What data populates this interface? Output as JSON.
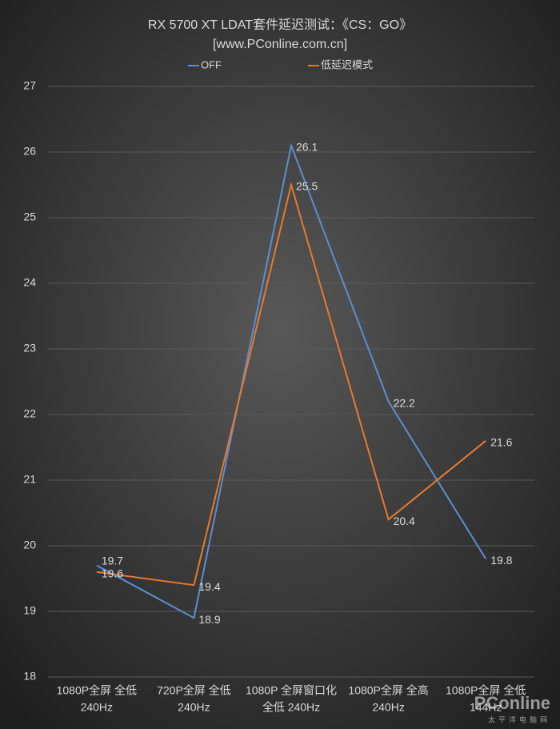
{
  "chart_data": {
    "type": "line",
    "title": "RX 5700 XT LDAT套件延迟测试：《CS：GO》",
    "subtitle": "[www.PConline.com.cn]",
    "categories": [
      [
        "1080P全屏 全低",
        "240Hz"
      ],
      [
        "720P全屏 全低",
        "240Hz"
      ],
      [
        "1080P 全屏窗口化",
        "全低 240Hz"
      ],
      [
        "1080P全屏 全高",
        "240Hz"
      ],
      [
        "1080P全屏 全低",
        "144Hz"
      ]
    ],
    "series": [
      {
        "name": "OFF",
        "color": "#5b8fd0",
        "values": [
          19.7,
          18.9,
          26.1,
          22.2,
          19.8
        ]
      },
      {
        "name": "低延迟模式",
        "color": "#e8792e",
        "values": [
          19.6,
          19.4,
          25.5,
          20.4,
          21.6
        ]
      }
    ],
    "ylim": [
      18,
      27
    ],
    "yticks": [
      18,
      19,
      20,
      21,
      22,
      23,
      24,
      25,
      26,
      27
    ],
    "grid": true,
    "legend": "top",
    "watermark": "PConline",
    "watermark_sub": "太平洋电脑网"
  }
}
